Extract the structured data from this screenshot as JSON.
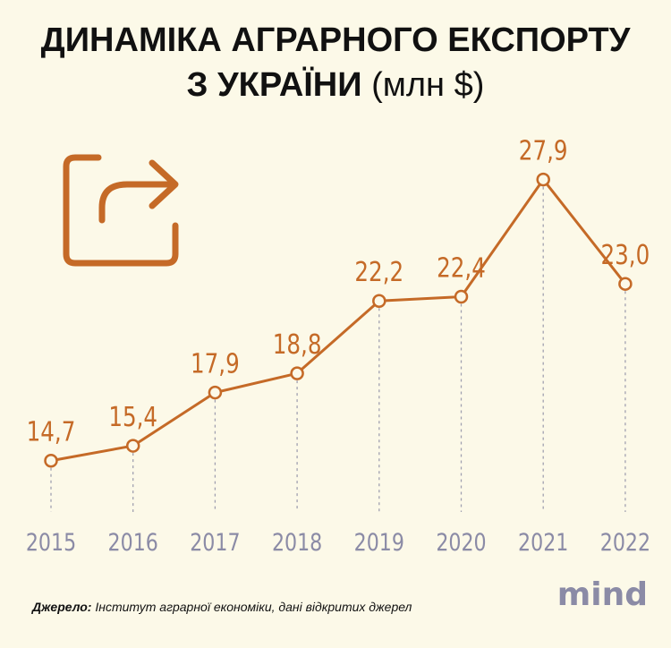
{
  "title": {
    "line1": "ДИНАМІКА АГРАРНОГО ЕКСПОРТУ",
    "line2_bold": "З УКРАЇНИ",
    "line2_unit": "(млн $)"
  },
  "colors": {
    "background": "#fcf9e8",
    "accent": "#c56a27",
    "axis_label": "#8b8ba6",
    "grid": "#a0a0b0"
  },
  "icon": {
    "name": "share-icon"
  },
  "chart_data": {
    "type": "line",
    "title": "ДИНАМІКА АГРАРНОГО ЕКСПОРТУ З УКРАЇНИ (млн $)",
    "xlabel": "",
    "ylabel": "",
    "categories": [
      "2015",
      "2016",
      "2017",
      "2018",
      "2019",
      "2020",
      "2021",
      "2022"
    ],
    "values": [
      14.7,
      15.4,
      17.9,
      18.8,
      22.2,
      22.4,
      27.9,
      23.0
    ],
    "data_labels": [
      "14,7",
      "15,4",
      "17,9",
      "18,8",
      "22,2",
      "22,4",
      "27,9",
      "23,0"
    ],
    "ylim": [
      10,
      30
    ],
    "grid": false,
    "legend": "none"
  },
  "footer": {
    "source_label": "Джерело:",
    "source_text": "Інститут аграрної економіки, дані відкритих джерел"
  },
  "logo": {
    "text": "mind"
  }
}
